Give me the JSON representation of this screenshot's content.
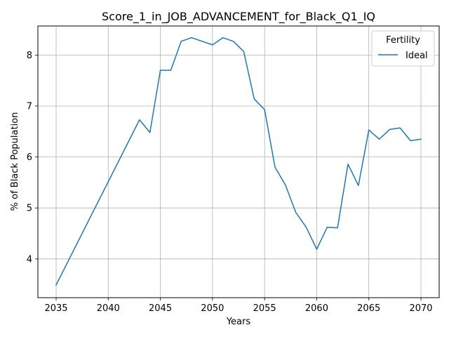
{
  "chart_data": {
    "type": "line",
    "title": "Score_1_in_JOB_ADVANCEMENT_for_Black_Q1_IQ",
    "xlabel": "Years",
    "ylabel": "% of Black Population",
    "xlim": [
      2033.25,
      2071.75
    ],
    "ylim": [
      3.24,
      8.57
    ],
    "xticks": [
      2035,
      2040,
      2045,
      2050,
      2055,
      2060,
      2065,
      2070
    ],
    "yticks": [
      4,
      5,
      6,
      7,
      8
    ],
    "grid": true,
    "legend": {
      "title": "Fertility",
      "placement": "top-right"
    },
    "series": [
      {
        "name": "Ideal",
        "color": "#1f77b4",
        "x": [
          2035,
          2043,
          2044,
          2045,
          2046,
          2047,
          2048,
          2050,
          2051,
          2052,
          2053,
          2054,
          2055,
          2056,
          2057,
          2058,
          2059,
          2060,
          2061,
          2062,
          2063,
          2064,
          2065,
          2066,
          2067,
          2068,
          2069,
          2070
        ],
        "y": [
          3.49,
          6.73,
          6.48,
          7.7,
          7.7,
          8.27,
          8.34,
          8.2,
          8.34,
          8.27,
          8.07,
          7.14,
          6.93,
          5.8,
          5.45,
          4.91,
          4.62,
          4.19,
          4.62,
          4.61,
          5.86,
          5.44,
          6.53,
          6.35,
          6.54,
          6.57,
          6.32,
          6.35
        ]
      }
    ]
  }
}
